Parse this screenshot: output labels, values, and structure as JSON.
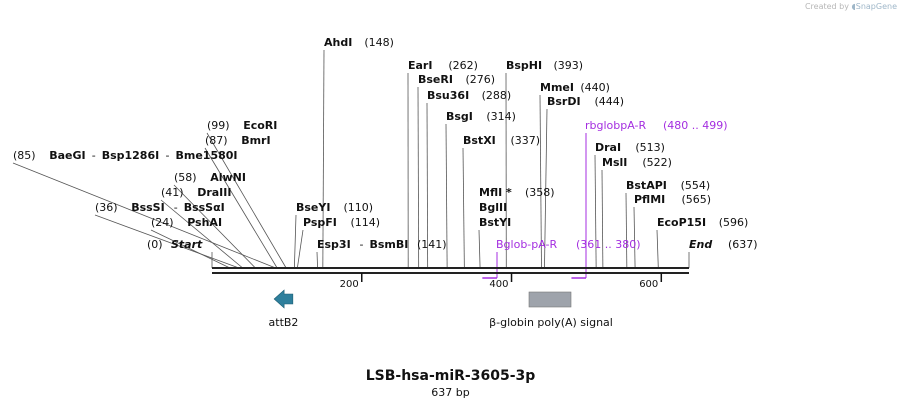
{
  "credit": {
    "prefix": "Created by",
    "brand": "SnapGene"
  },
  "map": {
    "name": "LSB-hsa-miR-3605-3p",
    "length_label": "637 bp",
    "length": 637,
    "ticks": [
      {
        "pos": 200,
        "label": "200"
      },
      {
        "pos": 400,
        "label": "400"
      },
      {
        "pos": 600,
        "label": "600"
      }
    ]
  },
  "sites": [
    {
      "names": [
        "AhdI"
      ],
      "pos": 148,
      "label_pos": "(148)",
      "side": "right"
    },
    {
      "names": [
        "EarI"
      ],
      "pos": 262,
      "label_pos": "(262)",
      "side": "right"
    },
    {
      "names": [
        "BseRI"
      ],
      "pos": 276,
      "label_pos": "(276)",
      "side": "right"
    },
    {
      "names": [
        "Bsu36I"
      ],
      "pos": 288,
      "label_pos": "(288)",
      "side": "right"
    },
    {
      "names": [
        "BspHI"
      ],
      "pos": 393,
      "label_pos": "(393)",
      "side": "right"
    },
    {
      "names": [
        "MmeI"
      ],
      "pos": 440,
      "label_pos": "(440)",
      "side": "right"
    },
    {
      "names": [
        "BsrDI"
      ],
      "pos": 444,
      "label_pos": "(444)",
      "side": "right"
    },
    {
      "names": [
        "BsgI"
      ],
      "pos": 314,
      "label_pos": "(314)",
      "side": "right"
    },
    {
      "names": [
        "BstXI"
      ],
      "pos": 337,
      "label_pos": "(337)",
      "side": "right"
    },
    {
      "names": [
        "EcoRI"
      ],
      "pos": 99,
      "label_pos": "(99)",
      "side": "left"
    },
    {
      "names": [
        "BmrI"
      ],
      "pos": 87,
      "label_pos": "(87)",
      "side": "left"
    },
    {
      "names": [
        "BaeGI",
        "Bsp1286I",
        "Bme1580I"
      ],
      "pos": 85,
      "label_pos": "(85)",
      "side": "left"
    },
    {
      "names": [
        "AlwNI"
      ],
      "pos": 58,
      "label_pos": "(58)",
      "side": "left"
    },
    {
      "names": [
        "DraIII"
      ],
      "pos": 41,
      "label_pos": "(41)",
      "side": "left"
    },
    {
      "names": [
        "BssSI",
        "BssSαI"
      ],
      "pos": 36,
      "label_pos": "(36)",
      "side": "left"
    },
    {
      "names": [
        "PshAI"
      ],
      "pos": 24,
      "label_pos": "(24)",
      "side": "left"
    },
    {
      "names": [
        "BseYI"
      ],
      "pos": 110,
      "label_pos": "(110)",
      "side": "right"
    },
    {
      "names": [
        "PspFI"
      ],
      "pos": 114,
      "label_pos": "(114)",
      "side": "right"
    },
    {
      "names": [
        "Esp3I",
        "BsmBI"
      ],
      "pos": 141,
      "label_pos": "(141)",
      "side": "right"
    },
    {
      "names": [
        "MflI *",
        "BglII",
        "BstYI"
      ],
      "pos": 358,
      "label_pos": "(358)",
      "side": "right"
    },
    {
      "names": [
        "DraI"
      ],
      "pos": 513,
      "label_pos": "(513)",
      "side": "right"
    },
    {
      "names": [
        "MslI"
      ],
      "pos": 522,
      "label_pos": "(522)",
      "side": "right"
    },
    {
      "names": [
        "BstAPI"
      ],
      "pos": 554,
      "label_pos": "(554)",
      "side": "right"
    },
    {
      "names": [
        "PflMI"
      ],
      "pos": 565,
      "label_pos": "(565)",
      "side": "right"
    },
    {
      "names": [
        "EcoP15I"
      ],
      "pos": 596,
      "label_pos": "(596)",
      "side": "right"
    }
  ],
  "ends": {
    "start": {
      "label": "Start",
      "pos_label": "(0)"
    },
    "end": {
      "label": "End",
      "pos_label": "(637)"
    }
  },
  "primers": [
    {
      "name": "rbglobpA-R",
      "range": "(480 .. 499)",
      "start": 480,
      "end": 499
    },
    {
      "name": "Bglob-pA-R",
      "range": "(361 .. 380)",
      "start": 361,
      "end": 380
    }
  ],
  "features": [
    {
      "name": "attB2",
      "type": "arrow-left",
      "start": 107,
      "end": 132,
      "color": "#2e7f9c"
    },
    {
      "name": "β-globin poly(A) signal",
      "type": "box",
      "start": 424,
      "end": 481,
      "color": "#9ea3ab"
    }
  ],
  "colors": {
    "primer": "#a42ee0",
    "backbone": "#222222",
    "site_line": "#555555"
  }
}
